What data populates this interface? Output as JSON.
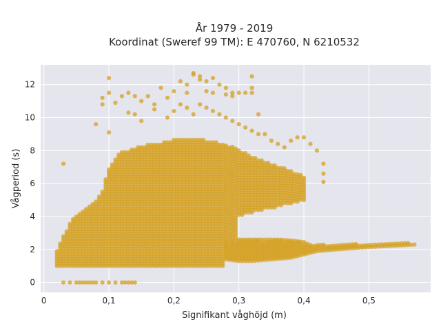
{
  "chart_data": {
    "type": "scatter",
    "title_line1": "År 1979 - 2019",
    "title_line2": "Koordinat (Sweref 99 TM): E 470760, N 6210532",
    "xlabel": "Signifikant våghöjd (m)",
    "ylabel": "Vågperiod (s)",
    "xlim": [
      -0.005,
      0.595
    ],
    "ylim": [
      -0.6,
      13.2
    ],
    "x_ticks": [
      0,
      0.1,
      0.2,
      0.3,
      0.4,
      0.5
    ],
    "x_tick_labels": [
      "0",
      "0,1",
      "0,2",
      "0,3",
      "0,4",
      "0,5"
    ],
    "y_ticks": [
      0,
      2,
      4,
      6,
      8,
      10,
      12
    ],
    "y_tick_labels": [
      "0",
      "2",
      "4",
      "6",
      "8",
      "10",
      "12"
    ],
    "grid": true,
    "marker_color": "#D4A020",
    "plot_bg": "#E5E5EE",
    "x_step": 0.005,
    "upper_envelope": [
      [
        0.02,
        1.9
      ],
      [
        0.03,
        2.8
      ],
      [
        0.04,
        3.6
      ],
      [
        0.05,
        4.1
      ],
      [
        0.06,
        4.4
      ],
      [
        0.07,
        4.6
      ],
      [
        0.08,
        5.0
      ],
      [
        0.09,
        5.6
      ],
      [
        0.1,
        7.0
      ],
      [
        0.11,
        7.6
      ],
      [
        0.12,
        8.0
      ],
      [
        0.13,
        8.0
      ],
      [
        0.15,
        8.3
      ],
      [
        0.18,
        8.5
      ],
      [
        0.2,
        8.7
      ],
      [
        0.22,
        8.7
      ],
      [
        0.24,
        8.7
      ],
      [
        0.26,
        8.6
      ],
      [
        0.28,
        8.4
      ],
      [
        0.3,
        8.1
      ],
      [
        0.32,
        7.7
      ],
      [
        0.34,
        7.4
      ],
      [
        0.36,
        7.1
      ],
      [
        0.38,
        6.8
      ],
      [
        0.4,
        6.5
      ]
    ],
    "lower_band_base": 1.0,
    "swell_band": [
      [
        0.28,
        2.4
      ],
      [
        0.3,
        2.55
      ],
      [
        0.32,
        2.55
      ],
      [
        0.34,
        2.55
      ],
      [
        0.36,
        2.55
      ],
      [
        0.38,
        2.5
      ],
      [
        0.4,
        2.4
      ],
      [
        0.42,
        2.3
      ],
      [
        0.45,
        2.3
      ],
      [
        0.5,
        2.35
      ],
      [
        0.55,
        2.4
      ],
      [
        0.57,
        2.4
      ]
    ],
    "swell_lower": [
      [
        0.28,
        1.4
      ],
      [
        0.3,
        1.3
      ],
      [
        0.32,
        1.3
      ],
      [
        0.35,
        1.4
      ],
      [
        0.38,
        1.5
      ],
      [
        0.4,
        1.7
      ],
      [
        0.42,
        1.9
      ],
      [
        0.45,
        2.0
      ],
      [
        0.5,
        2.15
      ],
      [
        0.55,
        2.25
      ],
      [
        0.57,
        2.3
      ]
    ],
    "mid_gap": [
      [
        0.3,
        4.0
      ],
      [
        0.32,
        4.2
      ],
      [
        0.34,
        4.4
      ],
      [
        0.36,
        4.6
      ],
      [
        0.38,
        4.8
      ],
      [
        0.4,
        5.0
      ]
    ],
    "zero_points": [
      0.03,
      0.04,
      0.05,
      0.055,
      0.06,
      0.065,
      0.07,
      0.075,
      0.08,
      0.09,
      0.1,
      0.11,
      0.12,
      0.125,
      0.13,
      0.135,
      0.14
    ],
    "outliers": [
      [
        0.03,
        7.2
      ],
      [
        0.08,
        9.6
      ],
      [
        0.09,
        11.2
      ],
      [
        0.09,
        10.8
      ],
      [
        0.1,
        12.4
      ],
      [
        0.1,
        11.5
      ],
      [
        0.1,
        9.1
      ],
      [
        0.11,
        10.9
      ],
      [
        0.12,
        11.3
      ],
      [
        0.13,
        11.5
      ],
      [
        0.13,
        10.3
      ],
      [
        0.14,
        11.3
      ],
      [
        0.15,
        11.0
      ],
      [
        0.16,
        11.3
      ],
      [
        0.17,
        10.8
      ],
      [
        0.18,
        11.8
      ],
      [
        0.19,
        11.2
      ],
      [
        0.2,
        11.6
      ],
      [
        0.21,
        12.2
      ],
      [
        0.22,
        12.0
      ],
      [
        0.22,
        11.5
      ],
      [
        0.23,
        12.7
      ],
      [
        0.23,
        12.6
      ],
      [
        0.24,
        12.5
      ],
      [
        0.24,
        12.3
      ],
      [
        0.25,
        12.2
      ],
      [
        0.25,
        11.6
      ],
      [
        0.26,
        12.4
      ],
      [
        0.26,
        11.5
      ],
      [
        0.27,
        12.0
      ],
      [
        0.28,
        11.8
      ],
      [
        0.28,
        11.4
      ],
      [
        0.29,
        11.3
      ],
      [
        0.29,
        11.5
      ],
      [
        0.3,
        11.5
      ],
      [
        0.31,
        11.5
      ],
      [
        0.32,
        12.5
      ],
      [
        0.32,
        11.8
      ],
      [
        0.32,
        11.5
      ],
      [
        0.33,
        10.2
      ],
      [
        0.14,
        10.2
      ],
      [
        0.15,
        9.8
      ],
      [
        0.17,
        10.5
      ],
      [
        0.19,
        10.0
      ],
      [
        0.2,
        10.4
      ],
      [
        0.21,
        10.8
      ],
      [
        0.22,
        10.6
      ],
      [
        0.23,
        10.2
      ],
      [
        0.24,
        10.8
      ],
      [
        0.25,
        10.6
      ],
      [
        0.26,
        10.4
      ],
      [
        0.27,
        10.2
      ],
      [
        0.28,
        10.0
      ],
      [
        0.29,
        9.8
      ],
      [
        0.3,
        9.6
      ],
      [
        0.31,
        9.4
      ],
      [
        0.32,
        9.2
      ],
      [
        0.33,
        9.0
      ],
      [
        0.34,
        9.0
      ],
      [
        0.35,
        8.6
      ],
      [
        0.36,
        8.4
      ],
      [
        0.37,
        8.2
      ],
      [
        0.38,
        8.6
      ],
      [
        0.39,
        8.8
      ],
      [
        0.4,
        8.8
      ],
      [
        0.41,
        8.4
      ],
      [
        0.42,
        8.0
      ],
      [
        0.43,
        7.2
      ],
      [
        0.43,
        6.6
      ],
      [
        0.43,
        6.1
      ]
    ]
  }
}
